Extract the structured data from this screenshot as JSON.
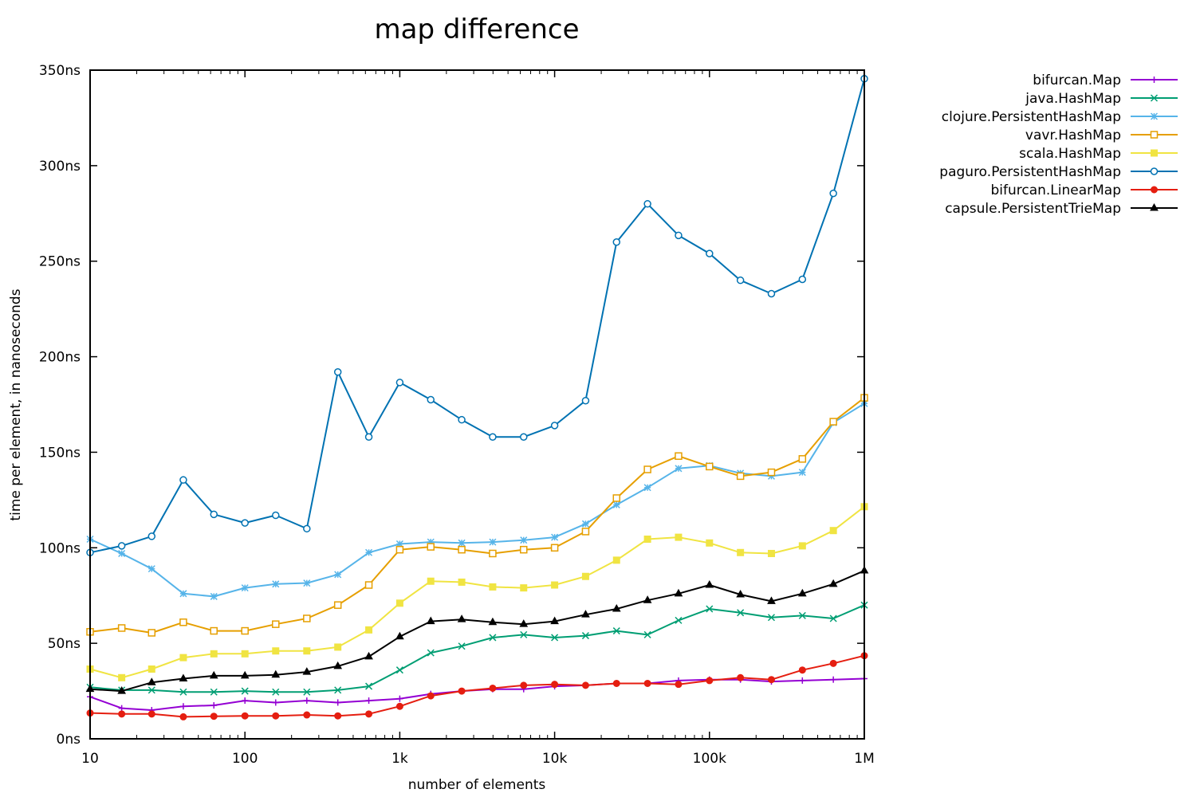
{
  "chart_data": {
    "type": "line",
    "title": "map difference",
    "xlabel": "number of elements",
    "ylabel": "time per element, in nanoseconds",
    "xscale": "log",
    "xlim": [
      10,
      1000000
    ],
    "ylim": [
      0,
      350
    ],
    "grid": false,
    "legend_position": "top-right, outside plot",
    "x_ticks": [
      {
        "value": 10,
        "label": "10"
      },
      {
        "value": 100,
        "label": "100"
      },
      {
        "value": 1000,
        "label": "1k"
      },
      {
        "value": 10000,
        "label": "10k"
      },
      {
        "value": 100000,
        "label": "100k"
      },
      {
        "value": 1000000,
        "label": "1M"
      }
    ],
    "y_ticks": [
      {
        "value": 0,
        "label": "0ns"
      },
      {
        "value": 50,
        "label": "50ns"
      },
      {
        "value": 100,
        "label": "100ns"
      },
      {
        "value": 150,
        "label": "150ns"
      },
      {
        "value": 200,
        "label": "200ns"
      },
      {
        "value": 250,
        "label": "250ns"
      },
      {
        "value": 300,
        "label": "300ns"
      },
      {
        "value": 350,
        "label": "350ns"
      }
    ],
    "x": [
      10,
      16,
      25,
      40,
      63,
      100,
      158,
      251,
      398,
      631,
      1000,
      1585,
      2512,
      3981,
      6310,
      10000,
      15849,
      25119,
      39811,
      63096,
      100000,
      158489,
      251189,
      398107,
      630957,
      1000000
    ],
    "series": [
      {
        "name": "bifurcan.Map",
        "color": "#9400d3",
        "marker": "plus",
        "values": [
          22,
          16,
          15,
          17,
          17.5,
          20,
          19,
          20,
          19,
          20,
          21,
          23.5,
          25,
          26,
          26,
          27.5,
          28,
          29,
          29,
          30.5,
          31,
          31,
          30,
          30.5,
          31,
          31.5
        ]
      },
      {
        "name": "java.HashMap",
        "color": "#009e73",
        "marker": "cross",
        "values": [
          27,
          25.5,
          25.5,
          24.5,
          24.5,
          25,
          24.5,
          24.5,
          25.5,
          27.5,
          36,
          45,
          48.5,
          53,
          54.5,
          53,
          54,
          56.5,
          54.5,
          62,
          68,
          66,
          63.5,
          64.5,
          63,
          70
        ]
      },
      {
        "name": "clojure.PersistentHashMap",
        "color": "#56b4e9",
        "marker": "star",
        "values": [
          104.5,
          97,
          89,
          76,
          74.5,
          79,
          81,
          81.5,
          86,
          97.5,
          102,
          103,
          102.5,
          103,
          104,
          105.5,
          112.5,
          122.5,
          131.5,
          141.5,
          143,
          139,
          137.5,
          139.5,
          165.5,
          175.5
        ]
      },
      {
        "name": "vavr.HashMap",
        "color": "#e69f00",
        "marker": "open-square",
        "values": [
          56,
          58,
          55.5,
          61,
          56.5,
          56.5,
          60,
          63,
          70,
          80.5,
          99,
          100.5,
          99,
          97,
          99,
          100,
          108.5,
          126,
          141,
          148,
          142.5,
          137.5,
          139.5,
          146.5,
          166,
          178.5
        ]
      },
      {
        "name": "scala.HashMap",
        "color": "#f0e442",
        "marker": "filled-square",
        "values": [
          36.5,
          32,
          36.5,
          42.5,
          44.5,
          44.5,
          46,
          46,
          48,
          57,
          71,
          82.5,
          82,
          79.5,
          79,
          80.5,
          85,
          93.5,
          104.5,
          105.5,
          102.5,
          97.5,
          97,
          101,
          109,
          121.5
        ]
      },
      {
        "name": "paguro.PersistentHashMap",
        "color": "#0072b2",
        "marker": "open-circle",
        "values": [
          97.5,
          101,
          106,
          135.5,
          117.5,
          113,
          117,
          110,
          192,
          158,
          186.5,
          177.5,
          167,
          158,
          158,
          164,
          177,
          260,
          280,
          263.5,
          254,
          240,
          233,
          240.5,
          285.5,
          345.5
        ]
      },
      {
        "name": "bifurcan.LinearMap",
        "color": "#e51e10",
        "marker": "filled-circle",
        "values": [
          13.5,
          13,
          13,
          11.5,
          11.8,
          12,
          12,
          12.5,
          12,
          13,
          17,
          22.5,
          25,
          26.5,
          28,
          28.5,
          28,
          29,
          29,
          28.5,
          30.5,
          32,
          31,
          36,
          39.5,
          43.5
        ]
      },
      {
        "name": "capsule.PersistentTrieMap",
        "color": "#000000",
        "marker": "filled-triangle",
        "values": [
          26,
          25,
          29.5,
          31.5,
          33,
          33,
          33.5,
          35,
          38,
          43,
          53.5,
          61.5,
          62.5,
          61,
          60,
          61.5,
          65,
          68,
          72.5,
          76,
          80.5,
          75.5,
          72,
          76,
          81,
          88
        ]
      }
    ]
  }
}
